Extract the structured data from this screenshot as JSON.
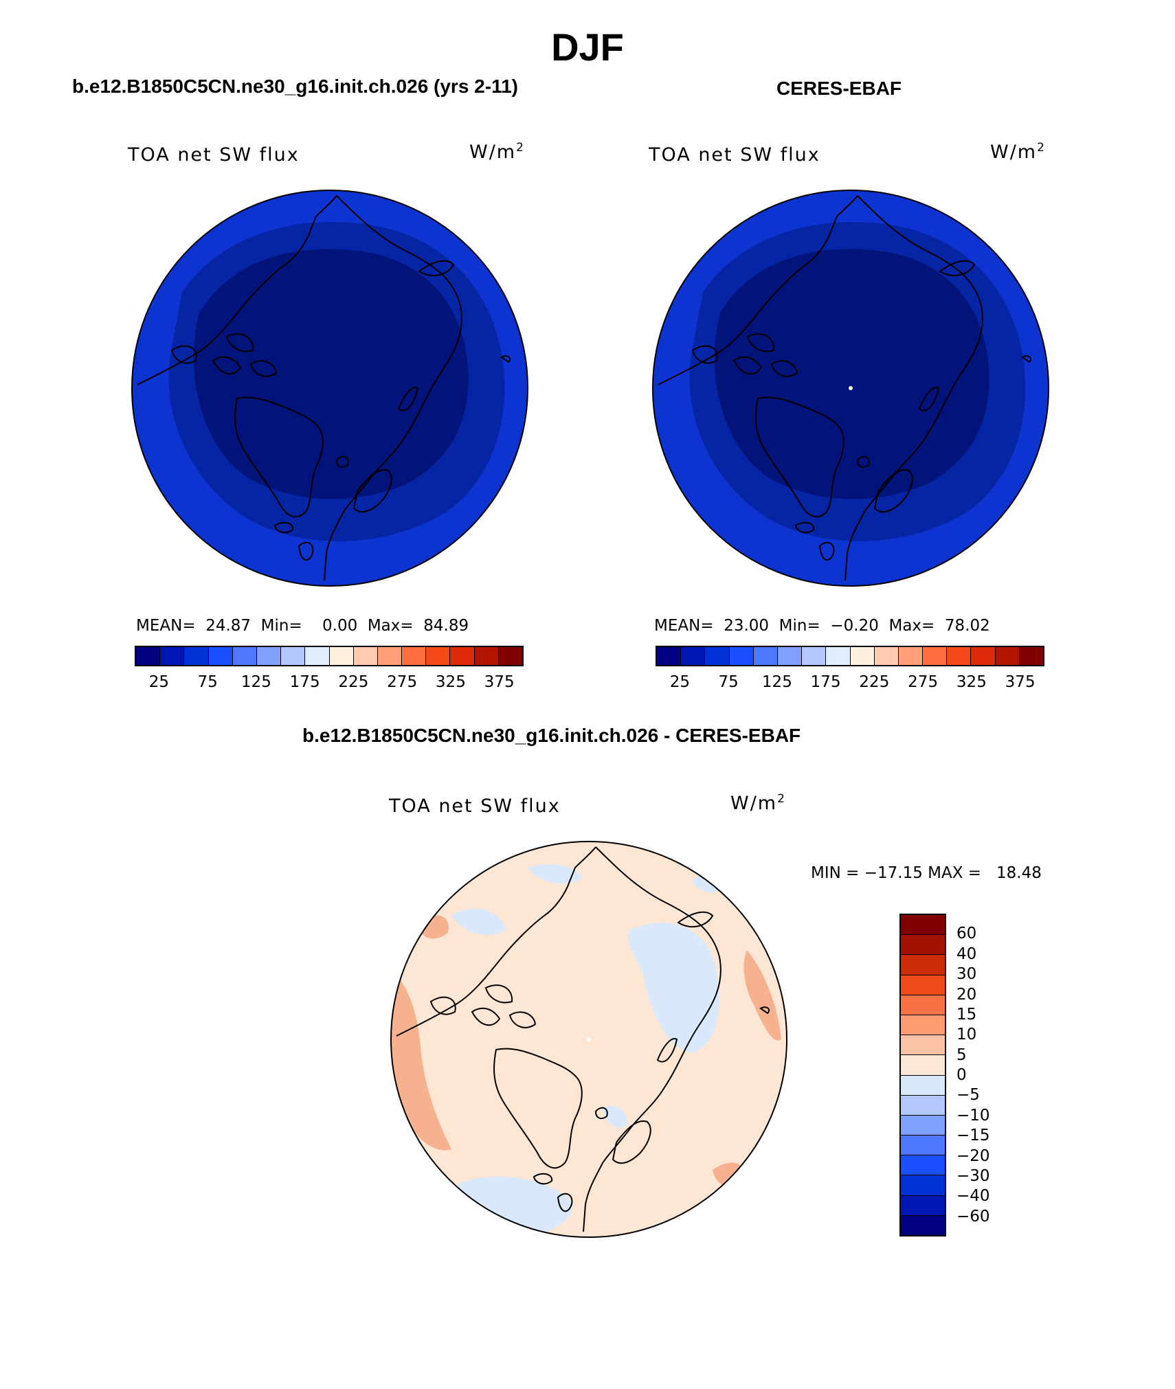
{
  "figure": {
    "season": "DJF",
    "model_title": "b.e12.B1850C5CN.ne30_g16.init.ch.026 (yrs 2-11)",
    "obs_title": "CERES-EBAF",
    "diff_title": "b.e12.B1850C5CN.ne30_g16.init.ch.026 - CERES-EBAF"
  },
  "panels": {
    "model": {
      "variable": "TOA net SW flux",
      "units": "W/m",
      "units_sup": "2",
      "stats": "MEAN=  24.87  Min=    0.00  Max=  84.89"
    },
    "obs": {
      "variable": "TOA net SW flux",
      "units": "W/m",
      "units_sup": "2",
      "stats": "MEAN=  23.00  Min=  −0.20  Max=  78.02"
    },
    "diff": {
      "variable": "TOA net SW flux",
      "units": "W/m",
      "units_sup": "2",
      "stats": "MIN = −17.15 MAX =   18.48"
    }
  },
  "colors": {
    "abs_scale": [
      "#000080",
      "#0016b3",
      "#0030d6",
      "#1a4fff",
      "#4d78ff",
      "#809fff",
      "#b3c8ff",
      "#e0ecff",
      "#fff0e0",
      "#ffcab0",
      "#ffa07a",
      "#ff7040",
      "#f44a1a",
      "#dd2a08",
      "#b31400",
      "#800000"
    ],
    "diff_scale": [
      "#000080",
      "#0016b3",
      "#0030d6",
      "#1a4fff",
      "#4d78ff",
      "#809fff",
      "#b3c8ff",
      "#d9e8fb",
      "#fde6d4",
      "#fbc2a6",
      "#fb9c72",
      "#f77346",
      "#ee4a1a",
      "#cc2a08",
      "#a31200",
      "#800000"
    ],
    "land_outline": "#000000",
    "abs_map_outer": "#0d34d0",
    "abs_map_mid": "#0525a4",
    "abs_map_inner": "#02137a",
    "diff_map_base": "#fde6d4",
    "diff_map_blue": "#d9e8fb",
    "diff_map_orange": "#f5a882"
  },
  "chart_data": [
    {
      "type": "heatmap",
      "title": "b.e12.B1850C5CN.ne30_g16.init.ch.026 (yrs 2-11)",
      "variable": "TOA net SW flux",
      "units": "W/m2",
      "projection": "north polar stereographic",
      "mean": 24.87,
      "min": 0.0,
      "max": 84.89,
      "colorbar_ticks": [
        25,
        75,
        125,
        175,
        225,
        275,
        325,
        375
      ],
      "colorbar_ticklabels": [
        "25",
        "75",
        "125",
        "175",
        "225",
        "275",
        "325",
        "375"
      ]
    },
    {
      "type": "heatmap",
      "title": "CERES-EBAF",
      "variable": "TOA net SW flux",
      "units": "W/m2",
      "projection": "north polar stereographic",
      "mean": 23.0,
      "min": -0.2,
      "max": 78.02,
      "colorbar_ticks": [
        25,
        75,
        125,
        175,
        225,
        275,
        325,
        375
      ],
      "colorbar_ticklabels": [
        "25",
        "75",
        "125",
        "175",
        "225",
        "275",
        "325",
        "375"
      ]
    },
    {
      "type": "heatmap",
      "title": "b.e12.B1850C5CN.ne30_g16.init.ch.026 - CERES-EBAF",
      "variable": "TOA net SW flux",
      "units": "W/m2",
      "projection": "north polar stereographic",
      "min": -17.15,
      "max": 18.48,
      "colorbar_ticks": [
        60,
        40,
        30,
        20,
        15,
        10,
        5,
        0,
        -5,
        -10,
        -15,
        -20,
        -30,
        -40,
        -60
      ],
      "colorbar_ticklabels": [
        "60",
        "40",
        "30",
        "20",
        "15",
        "10",
        "5",
        "0",
        "−5",
        "−10",
        "−15",
        "−20",
        "−30",
        "−40",
        "−60"
      ]
    }
  ]
}
